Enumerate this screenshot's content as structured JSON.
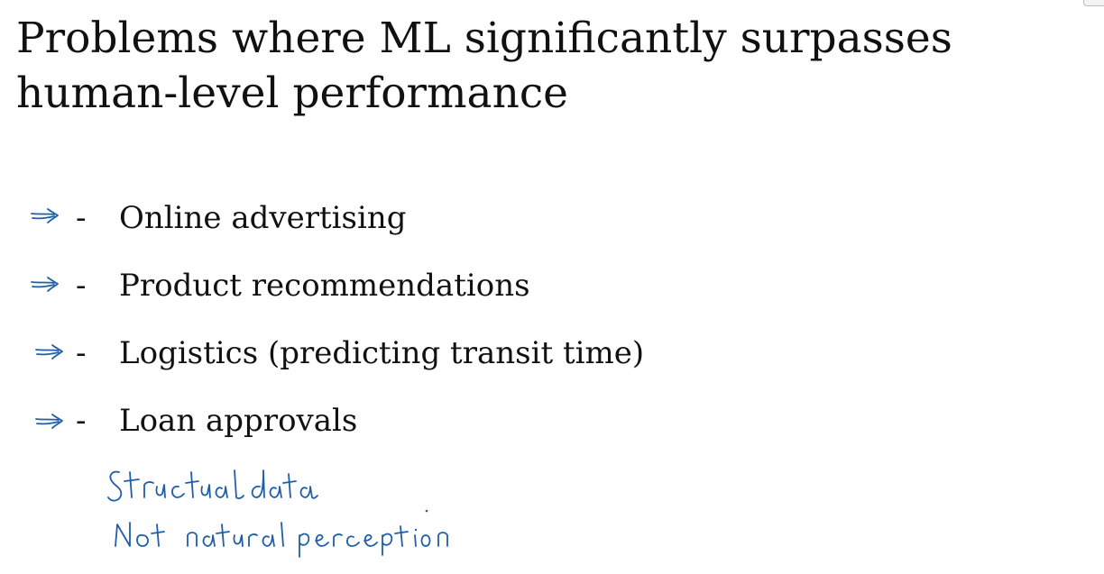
{
  "slide": {
    "title_line1": "Problems where ML significantly surpasses",
    "title_line2": "human-level performance",
    "bullets": [
      {
        "marker": "-",
        "text": "Online advertising",
        "annotation_icon": "handwritten-arrow-icon"
      },
      {
        "marker": "-",
        "text": "Product recommendations",
        "annotation_icon": "handwritten-arrow-icon"
      },
      {
        "marker": "-",
        "text": "Logistics (predicting transit time)",
        "annotation_icon": "handwritten-arrow-icon"
      },
      {
        "marker": "-",
        "text": "Loan approvals",
        "annotation_icon": "handwritten-arrow-icon"
      }
    ],
    "handwritten_notes": [
      "Structual data",
      "Not natural perception"
    ],
    "ink_color": "#1f5fa8"
  }
}
